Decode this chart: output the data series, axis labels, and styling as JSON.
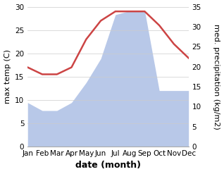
{
  "months": [
    "Jan",
    "Feb",
    "Mar",
    "Apr",
    "May",
    "Jun",
    "Jul",
    "Aug",
    "Sep",
    "Oct",
    "Nov",
    "Dec"
  ],
  "temperature": [
    17,
    15.5,
    15.5,
    17,
    23,
    27,
    29,
    29,
    29,
    26,
    22,
    19
  ],
  "precipitation": [
    11,
    9,
    9,
    11,
    16,
    22,
    33,
    34,
    34,
    14,
    14,
    14
  ],
  "temp_ylim": [
    0,
    30
  ],
  "precip_ylim": [
    0,
    35
  ],
  "temp_yticks": [
    0,
    5,
    10,
    15,
    20,
    25,
    30
  ],
  "precip_yticks": [
    0,
    5,
    10,
    15,
    20,
    25,
    30,
    35
  ],
  "temp_color": "#cc4444",
  "precip_color": "#b8c8e8",
  "xlabel": "date (month)",
  "ylabel_left": "max temp (C)",
  "ylabel_right": "med. precipitation (kg/m2)",
  "bg_color": "#ffffff",
  "grid_color": "#cccccc",
  "label_fontsize": 8,
  "tick_fontsize": 7.5,
  "xlabel_fontsize": 9
}
